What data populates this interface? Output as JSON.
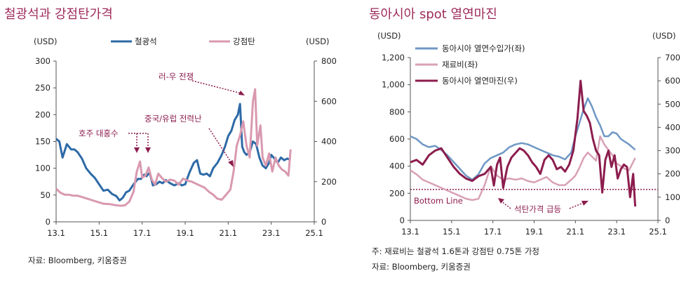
{
  "source_left": "자료: Bloomberg, 키움증권",
  "note_right": "주: 재료비는 철광석 1.6톤과 강점탄 0.75톤 가정",
  "source_right": "자료: Bloomberg, 키움증권",
  "chart_data": [
    {
      "type": "line",
      "title": "철광석과 강점탄가격",
      "ylabel_left": "(USD)",
      "ylabel_right": "(USD)",
      "x_ticks": [
        "13.1",
        "15.1",
        "17.1",
        "19.1",
        "21.1",
        "23.1",
        "25.1"
      ],
      "x_range": [
        2013.0,
        2025.0
      ],
      "ylim_left": [
        0,
        300
      ],
      "yticks_left": [
        "0",
        "50",
        "100",
        "150",
        "200",
        "250",
        "300"
      ],
      "ylim_right": [
        0,
        800
      ],
      "yticks_right": [
        "0",
        "200",
        "400",
        "600",
        "800"
      ],
      "colors": {
        "iron": "#2d6aa6",
        "coal": "#d999b0",
        "annotation": "#8c1d4e"
      },
      "series": [
        {
          "name": "철광석",
          "axis": "left",
          "x": [
            2013.0,
            2013.15,
            2013.3,
            2013.5,
            2013.7,
            2013.85,
            2014.0,
            2014.2,
            2014.4,
            2014.6,
            2014.8,
            2015.0,
            2015.2,
            2015.4,
            2015.6,
            2015.8,
            2015.95,
            2016.1,
            2016.25,
            2016.4,
            2016.6,
            2016.8,
            2016.95,
            2017.1,
            2017.2,
            2017.35,
            2017.5,
            2017.65,
            2017.8,
            2017.95,
            2018.1,
            2018.3,
            2018.5,
            2018.7,
            2018.85,
            2019.0,
            2019.2,
            2019.4,
            2019.55,
            2019.7,
            2019.85,
            2020.0,
            2020.15,
            2020.3,
            2020.5,
            2020.7,
            2020.85,
            2021.0,
            2021.15,
            2021.3,
            2021.45,
            2021.55,
            2021.65,
            2021.75,
            2021.85,
            2022.0,
            2022.15,
            2022.3,
            2022.45,
            2022.6,
            2022.75,
            2022.9,
            2023.0,
            2023.15,
            2023.3,
            2023.45,
            2023.6,
            2023.75,
            2023.9
          ],
          "y": [
            155,
            150,
            120,
            145,
            135,
            135,
            130,
            118,
            100,
            90,
            82,
            70,
            58,
            60,
            52,
            48,
            40,
            45,
            55,
            58,
            70,
            80,
            80,
            88,
            85,
            92,
            68,
            70,
            75,
            72,
            78,
            72,
            68,
            72,
            68,
            70,
            92,
            110,
            115,
            90,
            88,
            90,
            85,
            100,
            110,
            125,
            140,
            160,
            170,
            190,
            200,
            220,
            140,
            130,
            125,
            130,
            150,
            145,
            120,
            105,
            100,
            110,
            125,
            118,
            110,
            120,
            115,
            118,
            115
          ]
        },
        {
          "name": "강점탄",
          "axis": "right",
          "x": [
            2013.0,
            2013.2,
            2013.4,
            2013.6,
            2013.8,
            2014.0,
            2014.3,
            2014.6,
            2014.9,
            2015.2,
            2015.5,
            2015.8,
            2016.0,
            2016.2,
            2016.4,
            2016.6,
            2016.75,
            2016.9,
            2017.0,
            2017.15,
            2017.3,
            2017.45,
            2017.6,
            2017.75,
            2017.9,
            2018.1,
            2018.3,
            2018.5,
            2018.7,
            2018.9,
            2019.1,
            2019.3,
            2019.5,
            2019.7,
            2019.9,
            2020.1,
            2020.3,
            2020.5,
            2020.7,
            2020.9,
            2021.1,
            2021.25,
            2021.4,
            2021.55,
            2021.7,
            2021.85,
            2022.0,
            2022.15,
            2022.25,
            2022.35,
            2022.5,
            2022.6,
            2022.75,
            2022.9,
            2023.05,
            2023.2,
            2023.35,
            2023.5,
            2023.65,
            2023.8,
            2023.9
          ],
          "y": [
            165,
            145,
            135,
            135,
            130,
            130,
            120,
            110,
            100,
            90,
            88,
            82,
            80,
            82,
            100,
            150,
            250,
            300,
            220,
            230,
            270,
            210,
            185,
            240,
            220,
            200,
            210,
            205,
            185,
            215,
            205,
            200,
            190,
            180,
            170,
            150,
            135,
            115,
            110,
            135,
            160,
            250,
            380,
            430,
            500,
            380,
            320,
            600,
            660,
            380,
            480,
            320,
            280,
            340,
            250,
            320,
            280,
            260,
            250,
            230,
            360
          ]
        }
      ],
      "annotations": [
        "러-우 전쟁",
        "중국/유럽 전력난",
        "호주 대홍수"
      ]
    },
    {
      "type": "line",
      "title": "동아시아 spot 열연마진",
      "ylabel_left": "(USD)",
      "ylabel_right": "(USD)",
      "x_ticks": [
        "13.1",
        "15.1",
        "17.1",
        "19.1",
        "21.1",
        "23.1",
        "25.1"
      ],
      "x_range": [
        2013.0,
        2025.0
      ],
      "ylim_left": [
        0,
        1200
      ],
      "yticks_left": [
        "0",
        "200",
        "400",
        "600",
        "800",
        "1,000",
        "1,200"
      ],
      "ylim_right": [
        0,
        700
      ],
      "yticks_right": [
        "0",
        "100",
        "200",
        "300",
        "400",
        "500",
        "600",
        "700"
      ],
      "colors": {
        "price": "#6f97c4",
        "material": "#d8a1b6",
        "margin": "#8c1d4e",
        "bottom_line": "#8c1d4e"
      },
      "series": [
        {
          "name": "동아시아 열연수입가(좌)",
          "axis": "left",
          "x": [
            2013.0,
            2013.3,
            2013.6,
            2013.9,
            2014.2,
            2014.5,
            2014.8,
            2015.1,
            2015.4,
            2015.7,
            2016.0,
            2016.3,
            2016.6,
            2016.9,
            2017.2,
            2017.5,
            2017.8,
            2018.1,
            2018.4,
            2018.7,
            2019.0,
            2019.3,
            2019.6,
            2019.9,
            2020.2,
            2020.5,
            2020.8,
            2021.0,
            2021.2,
            2021.4,
            2021.6,
            2021.8,
            2022.0,
            2022.2,
            2022.4,
            2022.6,
            2022.8,
            2023.0,
            2023.2,
            2023.4,
            2023.6,
            2023.9
          ],
          "y": [
            620,
            600,
            560,
            540,
            550,
            520,
            480,
            430,
            380,
            330,
            300,
            340,
            420,
            460,
            480,
            500,
            540,
            560,
            570,
            560,
            540,
            520,
            500,
            480,
            470,
            450,
            500,
            620,
            720,
            820,
            900,
            840,
            760,
            700,
            620,
            620,
            650,
            640,
            600,
            580,
            560,
            520
          ]
        },
        {
          "name": "재료비(좌)",
          "axis": "left",
          "x": [
            2013.0,
            2013.3,
            2013.6,
            2013.9,
            2014.2,
            2014.5,
            2014.8,
            2015.1,
            2015.4,
            2015.7,
            2016.0,
            2016.3,
            2016.6,
            2016.9,
            2017.2,
            2017.5,
            2017.8,
            2018.1,
            2018.4,
            2018.7,
            2019.0,
            2019.3,
            2019.6,
            2019.9,
            2020.2,
            2020.5,
            2020.8,
            2021.0,
            2021.2,
            2021.4,
            2021.6,
            2021.8,
            2022.0,
            2022.2,
            2022.4,
            2022.6,
            2022.8,
            2023.0,
            2023.2,
            2023.4,
            2023.6,
            2023.9
          ],
          "y": [
            370,
            340,
            300,
            280,
            260,
            240,
            220,
            200,
            180,
            160,
            150,
            160,
            260,
            400,
            330,
            300,
            310,
            300,
            310,
            290,
            280,
            300,
            320,
            280,
            260,
            260,
            300,
            330,
            390,
            460,
            500,
            470,
            440,
            620,
            560,
            520,
            480,
            420,
            400,
            380,
            370,
            460
          ]
        },
        {
          "name": "동아시아 열연마진(우)",
          "axis": "right",
          "x": [
            2013.0,
            2013.3,
            2013.6,
            2013.9,
            2014.2,
            2014.5,
            2014.8,
            2015.1,
            2015.4,
            2015.7,
            2016.0,
            2016.3,
            2016.6,
            2016.9,
            2017.05,
            2017.2,
            2017.35,
            2017.5,
            2017.7,
            2017.9,
            2018.1,
            2018.3,
            2018.5,
            2018.7,
            2018.9,
            2019.1,
            2019.3,
            2019.5,
            2019.7,
            2019.9,
            2020.1,
            2020.3,
            2020.5,
            2020.7,
            2020.9,
            2021.1,
            2021.25,
            2021.4,
            2021.55,
            2021.7,
            2021.85,
            2022.0,
            2022.15,
            2022.3,
            2022.45,
            2022.6,
            2022.75,
            2022.9,
            2023.05,
            2023.2,
            2023.35,
            2023.5,
            2023.65,
            2023.8,
            2023.9
          ],
          "y": [
            250,
            260,
            240,
            280,
            300,
            310,
            270,
            230,
            200,
            180,
            170,
            190,
            200,
            230,
            150,
            240,
            270,
            140,
            230,
            270,
            290,
            310,
            300,
            280,
            250,
            230,
            200,
            260,
            280,
            260,
            220,
            230,
            210,
            240,
            300,
            440,
            600,
            470,
            450,
            420,
            350,
            300,
            280,
            120,
            260,
            300,
            230,
            280,
            180,
            220,
            240,
            230,
            100,
            200,
            60
          ]
        }
      ],
      "bottom_line": {
        "label": "Bottom Line",
        "value": 133
      },
      "annotations": [
        "석탄가격 급등"
      ]
    }
  ]
}
